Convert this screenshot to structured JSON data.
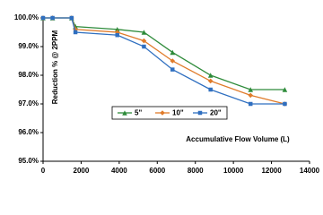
{
  "chart_data": {
    "type": "line",
    "y_label": "Reduction % @ 2PPM",
    "x_label": "Accumulative Flow Volume (L)",
    "x": [
      0,
      500,
      1500,
      1700,
      3900,
      5300,
      6800,
      8800,
      10900,
      12700
    ],
    "series": [
      {
        "name": "5\"",
        "color": "#2e8b3a",
        "marker": "triangle",
        "values": [
          100,
          100,
          100,
          99.7,
          99.6,
          99.5,
          98.8,
          98.0,
          97.5,
          97.5
        ]
      },
      {
        "name": "10\"",
        "color": "#e07b2a",
        "marker": "diamond",
        "values": [
          100,
          100,
          100,
          99.6,
          99.5,
          99.2,
          98.5,
          97.8,
          97.3,
          97.0
        ]
      },
      {
        "name": "20\"",
        "color": "#2f6fc0",
        "marker": "square",
        "values": [
          100,
          100,
          100,
          99.5,
          99.4,
          99.0,
          98.2,
          97.5,
          97.0,
          97.0
        ]
      }
    ],
    "xlim": [
      0,
      14000
    ],
    "xticks": [
      0,
      2000,
      4000,
      6000,
      8000,
      10000,
      12000,
      14000
    ],
    "ylim": [
      95,
      100
    ],
    "yticks": [
      {
        "value": 95,
        "label": "95.0%"
      },
      {
        "value": 96,
        "label": "96.0%"
      },
      {
        "value": 97,
        "label": "97.0%"
      },
      {
        "value": 98,
        "label": "98.0%"
      },
      {
        "value": 99,
        "label": "99.0%"
      },
      {
        "value": 100,
        "label": "100.0%"
      }
    ],
    "grid": false
  }
}
